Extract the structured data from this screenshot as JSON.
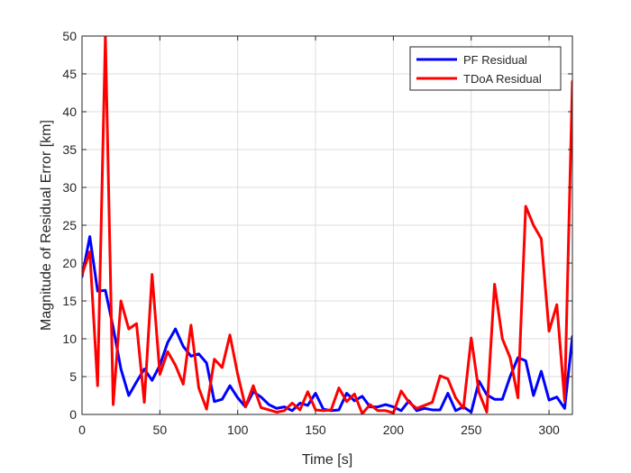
{
  "chart_data": {
    "type": "line",
    "xlabel": "Time [s]",
    "ylabel": "Magnitude of Residual Error [km]",
    "xlim": [
      0,
      315
    ],
    "ylim": [
      0,
      50
    ],
    "xticks": [
      0,
      50,
      100,
      150,
      200,
      250,
      300
    ],
    "yticks": [
      0,
      5,
      10,
      15,
      20,
      25,
      30,
      35,
      40,
      45,
      50
    ],
    "grid": true,
    "legend_position": "top-right",
    "x": [
      0,
      5,
      10,
      15,
      20,
      25,
      30,
      35,
      40,
      45,
      50,
      55,
      60,
      65,
      70,
      75,
      80,
      85,
      90,
      95,
      100,
      105,
      110,
      115,
      120,
      125,
      130,
      135,
      140,
      145,
      150,
      155,
      160,
      165,
      170,
      175,
      180,
      185,
      190,
      195,
      200,
      205,
      210,
      215,
      220,
      225,
      230,
      235,
      240,
      245,
      250,
      255,
      260,
      265,
      270,
      275,
      280,
      285,
      290,
      295,
      300,
      305,
      310,
      315
    ],
    "series": [
      {
        "name": "PF Residual",
        "color": "#0000ff",
        "values": [
          18.2,
          23.5,
          16.3,
          16.4,
          11.5,
          6.0,
          2.5,
          4.3,
          6.0,
          4.5,
          6.5,
          9.5,
          11.3,
          9.0,
          7.7,
          8.0,
          6.8,
          1.7,
          2.0,
          3.8,
          2.2,
          1.0,
          3.0,
          2.3,
          1.3,
          0.8,
          1.0,
          0.5,
          1.5,
          1.2,
          2.8,
          0.7,
          0.5,
          0.6,
          2.8,
          1.8,
          2.4,
          1.0,
          1.0,
          1.3,
          1.0,
          0.5,
          1.8,
          0.5,
          0.8,
          0.6,
          0.6,
          2.8,
          0.5,
          1.0,
          0.3,
          4.4,
          2.6,
          2.0,
          2.0,
          5.0,
          7.5,
          7.1,
          2.5,
          5.7,
          1.9,
          2.3,
          0.8,
          10.3
        ]
      },
      {
        "name": "TDoA Residual",
        "color": "#ff0000",
        "values": [
          18.5,
          21.5,
          3.8,
          50.0,
          1.3,
          15.0,
          11.3,
          12.0,
          1.6,
          18.5,
          5.3,
          8.3,
          6.5,
          4.0,
          11.8,
          3.5,
          0.7,
          7.3,
          6.2,
          10.5,
          5.3,
          1.0,
          3.8,
          0.9,
          0.6,
          0.3,
          0.5,
          1.5,
          0.6,
          3.0,
          0.6,
          0.5,
          0.6,
          3.5,
          1.7,
          2.7,
          0.1,
          1.3,
          0.5,
          0.5,
          0.2,
          3.1,
          1.6,
          0.8,
          1.2,
          1.6,
          5.1,
          4.7,
          2.2,
          0.8,
          10.1,
          2.9,
          0.3,
          17.2,
          10.0,
          7.5,
          2.2,
          27.5,
          25.0,
          23.2,
          11.0,
          14.5,
          1.8,
          44.0
        ]
      }
    ]
  }
}
